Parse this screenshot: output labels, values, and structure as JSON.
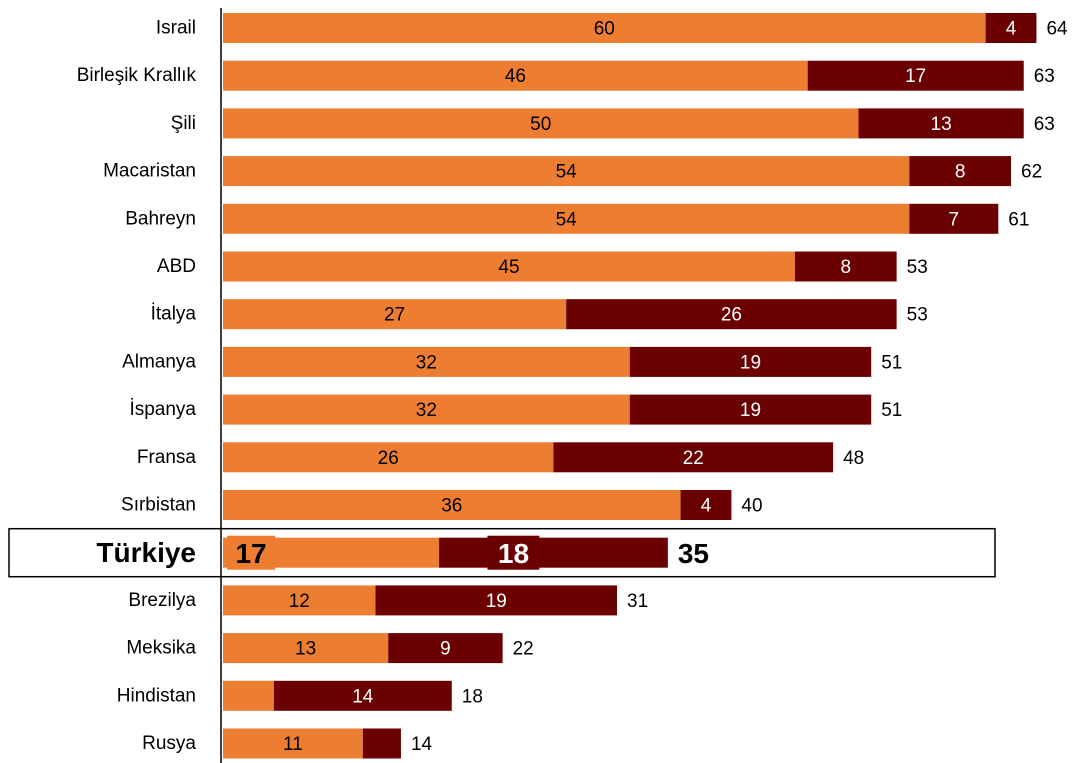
{
  "chart_data": {
    "type": "bar",
    "orientation": "horizontal",
    "stacked": true,
    "categories": [
      "Israil",
      "Birleşik Krallık",
      "Şili",
      "Macaristan",
      "Bahreyn",
      "ABD",
      "İtalya",
      "Almanya",
      "İspanya",
      "Fransa",
      "Sırbistan",
      "Türkiye",
      "Brezilya",
      "Meksika",
      "Hindistan",
      "Rusya"
    ],
    "series": [
      {
        "values": [
          60,
          46,
          50,
          54,
          54,
          45,
          27,
          32,
          32,
          26,
          36,
          17,
          12,
          13,
          4,
          11
        ],
        "color": "#ED7D31"
      },
      {
        "values": [
          4,
          17,
          13,
          8,
          7,
          8,
          26,
          19,
          19,
          22,
          4,
          18,
          19,
          9,
          14,
          3
        ],
        "color": "#6B0000"
      }
    ],
    "totals": [
      64,
      63,
      63,
      62,
      61,
      53,
      53,
      51,
      51,
      48,
      40,
      35,
      31,
      22,
      18,
      14
    ],
    "segment_labels_shown": [
      [
        true,
        true
      ],
      [
        true,
        true
      ],
      [
        true,
        true
      ],
      [
        true,
        true
      ],
      [
        true,
        true
      ],
      [
        true,
        true
      ],
      [
        true,
        true
      ],
      [
        true,
        true
      ],
      [
        true,
        true
      ],
      [
        true,
        true
      ],
      [
        true,
        true
      ],
      [
        true,
        true
      ],
      [
        true,
        true
      ],
      [
        true,
        true
      ],
      [
        false,
        true
      ],
      [
        true,
        false
      ]
    ],
    "highlighted_category": "Türkiye",
    "title": "",
    "xlabel": "",
    "ylabel": "",
    "xlim": [
      0,
      66
    ],
    "grid": false,
    "legend": "none"
  }
}
